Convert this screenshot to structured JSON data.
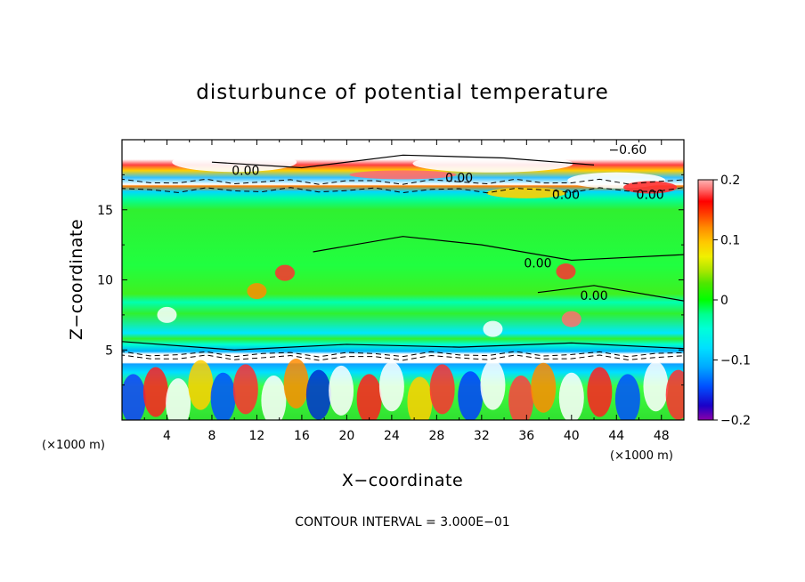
{
  "chart_data": {
    "type": "heatmap",
    "title": "disturbunce of potential temperature",
    "xlabel": "X−coordinate",
    "ylabel": "Z−coordinate",
    "x_unit": "(×1000 m)",
    "x_unit_right": "(×1000 m)",
    "footer": "CONTOUR INTERVAL = 3.000E−01",
    "xlim": [
      0,
      50
    ],
    "ylim": [
      0,
      20
    ],
    "x_ticks": [
      4,
      8,
      12,
      16,
      20,
      24,
      28,
      32,
      36,
      40,
      44,
      48
    ],
    "y_ticks": [
      5,
      10,
      15
    ],
    "colorbar": {
      "range": [
        -0.2,
        0.2
      ],
      "tick_values": [
        0.2,
        0.1,
        0,
        -0.1,
        -0.2
      ],
      "tick_labels": [
        "0.2",
        "0.1",
        "0",
        "−0.1",
        "−0.2"
      ],
      "colors": [
        "#8b00a8",
        "#1a00c8",
        "#0050ff",
        "#00a8ff",
        "#00e0ff",
        "#00ffd8",
        "#00ff90",
        "#00ff00",
        "#50e600",
        "#a8e600",
        "#f0f000",
        "#ffc800",
        "#ff8c00",
        "#ff3c00",
        "#ff0000",
        "#ff6e6e",
        "#ffb4b4"
      ]
    },
    "bands": [
      {
        "z": [
          0,
          5
        ],
        "value": "mixed",
        "desc": "convective turbulence"
      },
      {
        "z": [
          4.5,
          5.3
        ],
        "value": -0.15
      },
      {
        "z": [
          5.3,
          6.5
        ],
        "value": -0.06
      },
      {
        "z": [
          6.5,
          16
        ],
        "value": 0.0
      },
      {
        "z": [
          16,
          17
        ],
        "value": -0.12
      },
      {
        "z": [
          17,
          20
        ],
        "value": "mixed"
      }
    ],
    "contour_labels": [
      {
        "text": "−0.60",
        "x": 45,
        "z": 19.3
      },
      {
        "text": "0.00",
        "x": 11,
        "z": 17.8
      },
      {
        "text": "0.00",
        "x": 30,
        "z": 17.3
      },
      {
        "text": "0.00",
        "x": 39.5,
        "z": 16.1
      },
      {
        "text": "0.00",
        "x": 47,
        "z": 16.1
      },
      {
        "text": "0.00",
        "x": 37,
        "z": 11.2
      },
      {
        "text": "0.00",
        "x": 42,
        "z": 8.9
      }
    ]
  }
}
